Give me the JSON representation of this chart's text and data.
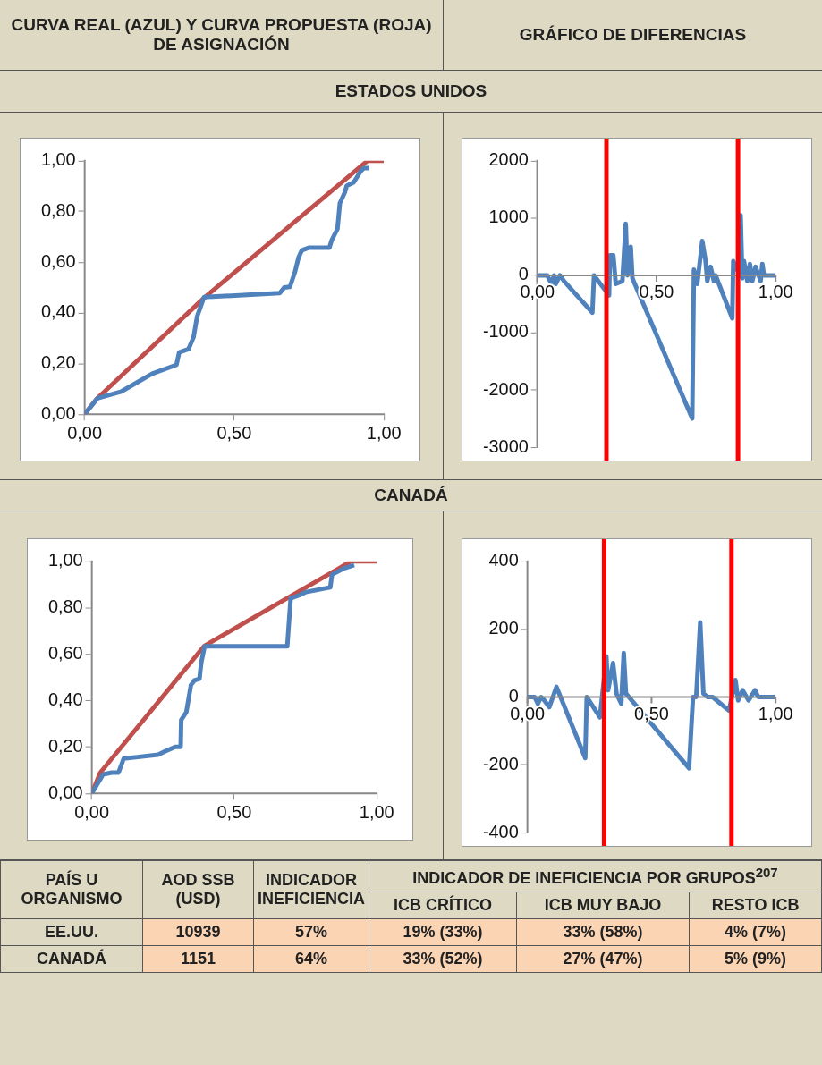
{
  "chart_data": [
    {
      "type": "line",
      "title": "CURVA REAL (AZUL) Y CURVA PROPUESTA (ROJA) DE ASIGNACIÓN",
      "subtitle": "ESTADOS UNIDOS",
      "series": [
        {
          "color": "#4f81bd",
          "x": [
            0,
            0.043,
            0.123,
            0.226,
            0.307,
            0.316,
            0.347,
            0.364,
            0.376,
            0.399,
            0.652,
            0.667,
            0.686,
            0.703,
            0.715,
            0.726,
            0.749,
            0.818,
            0.826,
            0.845,
            0.853,
            0.87,
            0.876,
            0.899,
            0.922,
            0.933,
            0.951
          ],
          "values": [
            0,
            0.063,
            0.09,
            0.16,
            0.195,
            0.244,
            0.257,
            0.304,
            0.386,
            0.462,
            0.478,
            0.5,
            0.503,
            0.562,
            0.619,
            0.647,
            0.657,
            0.657,
            0.688,
            0.732,
            0.833,
            0.877,
            0.902,
            0.915,
            0.958,
            0.971,
            0.971
          ]
        },
        {
          "color": "#c0504d",
          "x": [
            0,
            0.04,
            0.4,
            0.945,
            1
          ],
          "values": [
            0,
            0.06,
            0.46,
            1,
            1
          ]
        }
      ],
      "xlim": [
        0,
        1
      ],
      "ylim": [
        0,
        1
      ],
      "xticks": [
        {
          "value": 0,
          "label": "0,00"
        },
        {
          "value": 0.5,
          "label": "0,50"
        },
        {
          "value": 1,
          "label": "1,00"
        }
      ],
      "yticks": [
        {
          "value": 0,
          "label": "0,00"
        },
        {
          "value": 0.2,
          "label": "0,20"
        },
        {
          "value": 0.4,
          "label": "0,40"
        },
        {
          "value": 0.6,
          "label": "0,60"
        },
        {
          "value": 0.8,
          "label": "0,80"
        },
        {
          "value": 1,
          "label": "1,00"
        }
      ]
    },
    {
      "type": "line",
      "title": "GRÁFICO DE DIFERENCIAS",
      "series": [
        {
          "color": "#4f81bd",
          "x": [
            0,
            0.042,
            0.059,
            0.07,
            0.077,
            0.095,
            0.112,
            0.231,
            0.238,
            0.301,
            0.305,
            0.319,
            0.329,
            0.357,
            0.371,
            0.378,
            0.392,
            0.399,
            0.65,
            0.657,
            0.671,
            0.692,
            0.706,
            0.713,
            0.727,
            0.741,
            0.748,
            0.818,
            0.822,
            0.85,
            0.853,
            0.86,
            0.867,
            0.881,
            0.892,
            0.902,
            0.916,
            0.937,
            0.944,
            0.951,
            1
          ],
          "values": [
            0,
            0,
            -150,
            0,
            -150,
            0,
            -100,
            -650,
            0,
            -350,
            350,
            350,
            -150,
            -100,
            900,
            0,
            500,
            -50,
            -2500,
            100,
            -150,
            600,
            250,
            -100,
            150,
            -100,
            0,
            -750,
            250,
            0,
            1050,
            -50,
            250,
            -100,
            200,
            -100,
            150,
            -100,
            200,
            0,
            0
          ]
        }
      ],
      "xlim": [
        0,
        1
      ],
      "ylim": [
        -3000,
        2000
      ],
      "xticks": [
        {
          "value": 0,
          "label": "0,00"
        },
        {
          "value": 0.5,
          "label": "0,50"
        },
        {
          "value": 1,
          "label": "1,00"
        }
      ],
      "yticks": [
        -3000,
        -2000,
        -1000,
        0,
        1000,
        2000
      ],
      "ref_lines": [
        {
          "axis": "x",
          "value": 0.29,
          "color": "#ff0000"
        },
        {
          "axis": "x",
          "value": 0.842,
          "color": "#ff0000"
        }
      ]
    },
    {
      "type": "line",
      "title": "CANADÁ",
      "series": [
        {
          "color": "#4f81bd",
          "x": [
            0,
            0.04,
            0.07,
            0.094,
            0.112,
            0.233,
            0.257,
            0.293,
            0.312,
            0.314,
            0.332,
            0.348,
            0.36,
            0.378,
            0.384,
            0.396,
            0.686,
            0.698,
            0.728,
            0.752,
            0.837,
            0.843,
            0.885,
            0.921
          ],
          "values": [
            0,
            0.082,
            0.09,
            0.09,
            0.15,
            0.167,
            0.181,
            0.201,
            0.201,
            0.317,
            0.351,
            0.467,
            0.487,
            0.494,
            0.562,
            0.634,
            0.634,
            0.841,
            0.854,
            0.868,
            0.888,
            0.943,
            0.97,
            0.984
          ]
        },
        {
          "color": "#c0504d",
          "x": [
            0,
            0.03,
            0.395,
            0.873,
            0.909,
            1
          ],
          "values": [
            0,
            0.09,
            0.636,
            0.974,
            1,
            1
          ]
        }
      ],
      "xlim": [
        0,
        1
      ],
      "ylim": [
        0,
        1
      ],
      "xticks": [
        {
          "value": 0,
          "label": "0,00"
        },
        {
          "value": 0.5,
          "label": "0,50"
        },
        {
          "value": 1,
          "label": "1,00"
        }
      ],
      "yticks": [
        {
          "value": 0,
          "label": "0,00"
        },
        {
          "value": 0.2,
          "label": "0,20"
        },
        {
          "value": 0.4,
          "label": "0,40"
        },
        {
          "value": 0.6,
          "label": "0,60"
        },
        {
          "value": 0.8,
          "label": "0,80"
        },
        {
          "value": 1,
          "label": "1,00"
        }
      ]
    },
    {
      "type": "line",
      "series": [
        {
          "color": "#4f81bd",
          "x": [
            0,
            0.029,
            0.042,
            0.055,
            0.068,
            0.088,
            0.117,
            0.233,
            0.239,
            0.292,
            0.318,
            0.325,
            0.345,
            0.359,
            0.378,
            0.388,
            0.397,
            0.651,
            0.667,
            0.68,
            0.696,
            0.709,
            0.726,
            0.746,
            0.812,
            0.838,
            0.849,
            0.867,
            0.891,
            0.917,
            0.93,
            1
          ],
          "values": [
            0,
            0,
            -20,
            0,
            -10,
            -30,
            30,
            -180,
            0,
            -60,
            120,
            20,
            100,
            10,
            -20,
            130,
            10,
            -210,
            0,
            0,
            220,
            10,
            0,
            0,
            -40,
            50,
            -10,
            20,
            -10,
            20,
            0,
            0
          ]
        }
      ],
      "xlim": [
        0,
        1
      ],
      "ylim": [
        -400,
        400
      ],
      "xticks": [
        {
          "value": 0,
          "label": "0,00"
        },
        {
          "value": 0.5,
          "label": "0,50"
        },
        {
          "value": 1,
          "label": "1,00"
        }
      ],
      "yticks": [
        -400,
        -200,
        0,
        200,
        400
      ],
      "ref_lines": [
        {
          "axis": "x",
          "value": 0.309,
          "color": "#ff0000"
        },
        {
          "axis": "x",
          "value": 0.822,
          "color": "#ff0000"
        }
      ]
    },
    {
      "type": "other",
      "annotations": [
        "PAÍS U ORGANISMO",
        "AOD SSB (USD)",
        "INDICADOR INEFICIENCIA",
        "INDICADOR DE  INEFICIENCIA POR GRUPOS$^{207}$",
        "ICB CRÍTICO",
        "ICB MUY BAJO",
        "RESTO ICB",
        "EE.UU.",
        "10939",
        "57%",
        "19% (33%)",
        "33% (58%)",
        "4% (7%)",
        "CANADÁ",
        "1151",
        "64%",
        "33% (52%)",
        "27% (47%)",
        "5% (9%)"
      ]
    }
  ]
}
